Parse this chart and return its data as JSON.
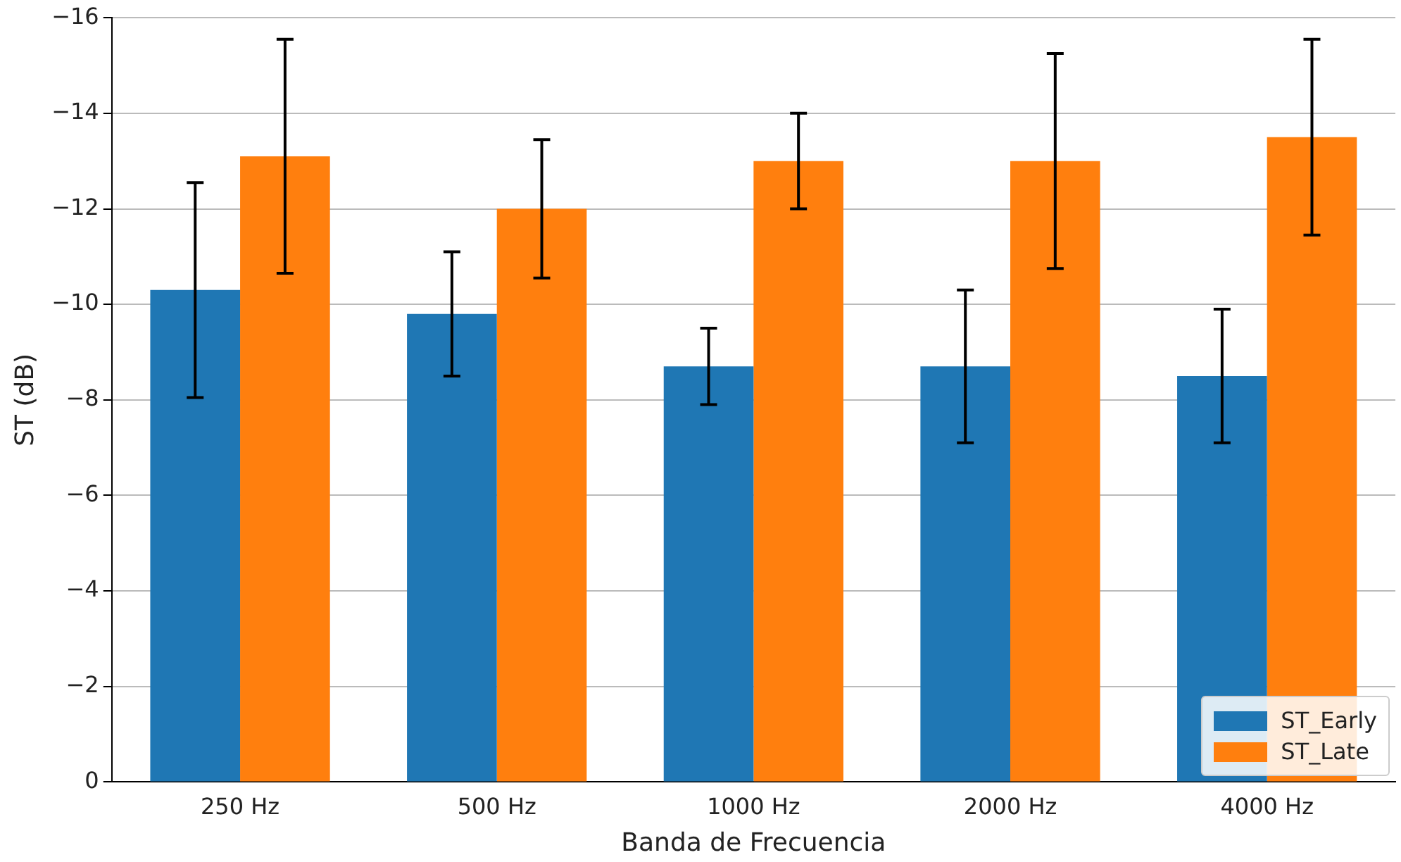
{
  "chart_data": {
    "type": "bar",
    "xlabel": "Banda de Frecuencia",
    "ylabel": "ST (dB)",
    "categories": [
      "250 Hz",
      "500 Hz",
      "1000 Hz",
      "2000 Hz",
      "4000 Hz"
    ],
    "series": [
      {
        "name": "ST_Early",
        "color": "#1f77b4",
        "values": [
          -10.3,
          -9.8,
          -8.7,
          -8.7,
          -8.5
        ],
        "errors": [
          2.25,
          1.3,
          0.8,
          1.6,
          1.4
        ]
      },
      {
        "name": "ST_Late",
        "color": "#ff7f0e",
        "values": [
          -13.1,
          -12.0,
          -13.0,
          -13.0,
          -13.5
        ],
        "errors": [
          2.45,
          1.45,
          1.0,
          2.25,
          2.05
        ]
      }
    ],
    "ylim": [
      0,
      -16
    ],
    "yticks": [
      {
        "value": 0,
        "label": "0"
      },
      {
        "value": -2,
        "label": "−2"
      },
      {
        "value": -4,
        "label": "−4"
      },
      {
        "value": -6,
        "label": "−6"
      },
      {
        "value": -8,
        "label": "−8"
      },
      {
        "value": -10,
        "label": "−10"
      },
      {
        "value": -12,
        "label": "−12"
      },
      {
        "value": -14,
        "label": "−14"
      },
      {
        "value": -16,
        "label": "−16"
      }
    ],
    "grid": "y",
    "legend": "bottom right"
  }
}
